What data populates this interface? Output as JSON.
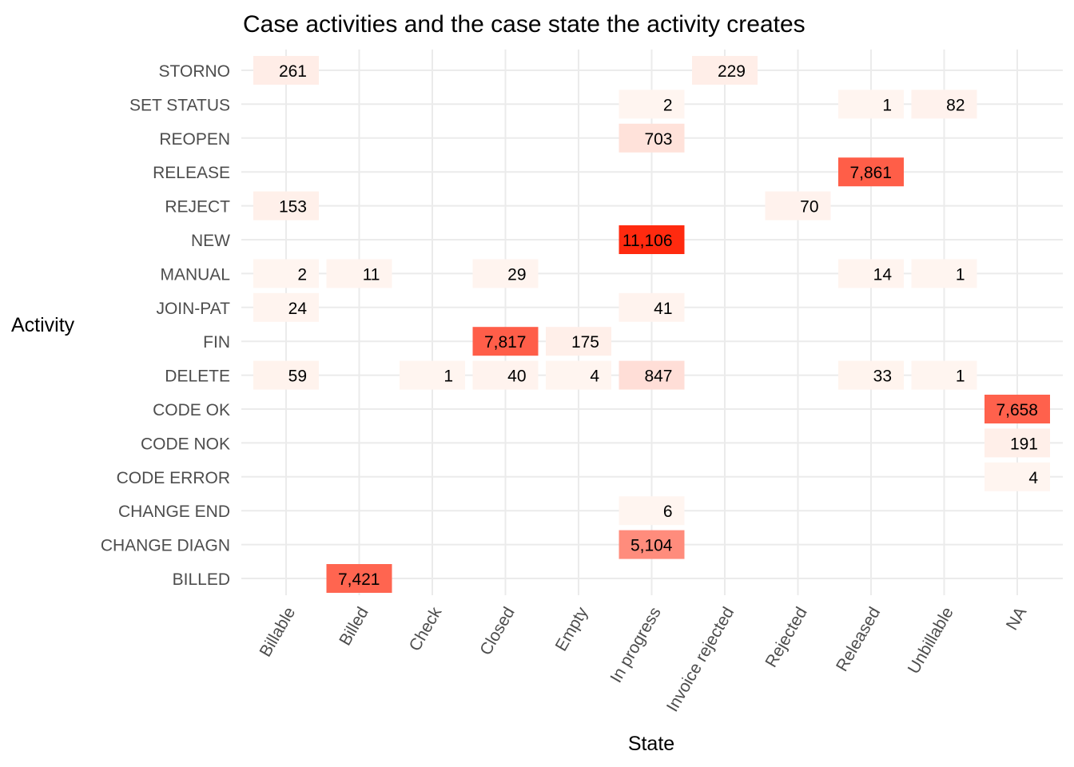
{
  "chart_data": {
    "type": "heatmap",
    "title": "Case activities and the case state the activity creates",
    "xlabel": "State",
    "ylabel": "Activity",
    "x_categories": [
      "Billable",
      "Billed",
      "Check",
      "Closed",
      "Empty",
      "In progress",
      "Invoice rejected",
      "Rejected",
      "Released",
      "Unbillable",
      "NA"
    ],
    "y_categories": [
      "STORNO",
      "SET STATUS",
      "REOPEN",
      "RELEASE",
      "REJECT",
      "NEW",
      "MANUAL",
      "JOIN-PAT",
      "FIN",
      "DELETE",
      "CODE OK",
      "CODE NOK",
      "CODE ERROR",
      "CHANGE END",
      "CHANGE DIAGN",
      "BILLED"
    ],
    "cells": [
      {
        "y": "STORNO",
        "x": "Billable",
        "value": 261,
        "label": "261"
      },
      {
        "y": "STORNO",
        "x": "Invoice rejected",
        "value": 229,
        "label": "229"
      },
      {
        "y": "SET STATUS",
        "x": "In progress",
        "value": 2,
        "label": "2"
      },
      {
        "y": "SET STATUS",
        "x": "Released",
        "value": 1,
        "label": "1"
      },
      {
        "y": "SET STATUS",
        "x": "Unbillable",
        "value": 82,
        "label": "82"
      },
      {
        "y": "REOPEN",
        "x": "In progress",
        "value": 703,
        "label": "703"
      },
      {
        "y": "RELEASE",
        "x": "Released",
        "value": 7861,
        "label": "7,861"
      },
      {
        "y": "REJECT",
        "x": "Billable",
        "value": 153,
        "label": "153"
      },
      {
        "y": "REJECT",
        "x": "Rejected",
        "value": 70,
        "label": "70"
      },
      {
        "y": "NEW",
        "x": "In progress",
        "value": 11106,
        "label": "11,106"
      },
      {
        "y": "MANUAL",
        "x": "Billable",
        "value": 2,
        "label": "2"
      },
      {
        "y": "MANUAL",
        "x": "Billed",
        "value": 11,
        "label": "11"
      },
      {
        "y": "MANUAL",
        "x": "Closed",
        "value": 29,
        "label": "29"
      },
      {
        "y": "MANUAL",
        "x": "Released",
        "value": 14,
        "label": "14"
      },
      {
        "y": "MANUAL",
        "x": "Unbillable",
        "value": 1,
        "label": "1"
      },
      {
        "y": "JOIN-PAT",
        "x": "Billable",
        "value": 24,
        "label": "24"
      },
      {
        "y": "JOIN-PAT",
        "x": "In progress",
        "value": 41,
        "label": "41"
      },
      {
        "y": "FIN",
        "x": "Closed",
        "value": 7817,
        "label": "7,817"
      },
      {
        "y": "FIN",
        "x": "Empty",
        "value": 175,
        "label": "175"
      },
      {
        "y": "DELETE",
        "x": "Billable",
        "value": 59,
        "label": "59"
      },
      {
        "y": "DELETE",
        "x": "Check",
        "value": 1,
        "label": "1"
      },
      {
        "y": "DELETE",
        "x": "Closed",
        "value": 40,
        "label": "40"
      },
      {
        "y": "DELETE",
        "x": "Empty",
        "value": 4,
        "label": "4"
      },
      {
        "y": "DELETE",
        "x": "In progress",
        "value": 847,
        "label": "847"
      },
      {
        "y": "DELETE",
        "x": "Released",
        "value": 33,
        "label": "33"
      },
      {
        "y": "DELETE",
        "x": "Unbillable",
        "value": 1,
        "label": "1"
      },
      {
        "y": "CODE OK",
        "x": "NA",
        "value": 7658,
        "label": "7,658"
      },
      {
        "y": "CODE NOK",
        "x": "NA",
        "value": 191,
        "label": "191"
      },
      {
        "y": "CODE ERROR",
        "x": "NA",
        "value": 4,
        "label": "4"
      },
      {
        "y": "CHANGE END",
        "x": "In progress",
        "value": 6,
        "label": "6"
      },
      {
        "y": "CHANGE DIAGN",
        "x": "In progress",
        "value": 5104,
        "label": "5,104"
      },
      {
        "y": "BILLED",
        "x": "Billed",
        "value": 7421,
        "label": "7,421"
      }
    ],
    "color_scale": {
      "low": "#fff5f0",
      "high": "#ff2a0f"
    },
    "grid": true,
    "legend": "none"
  }
}
